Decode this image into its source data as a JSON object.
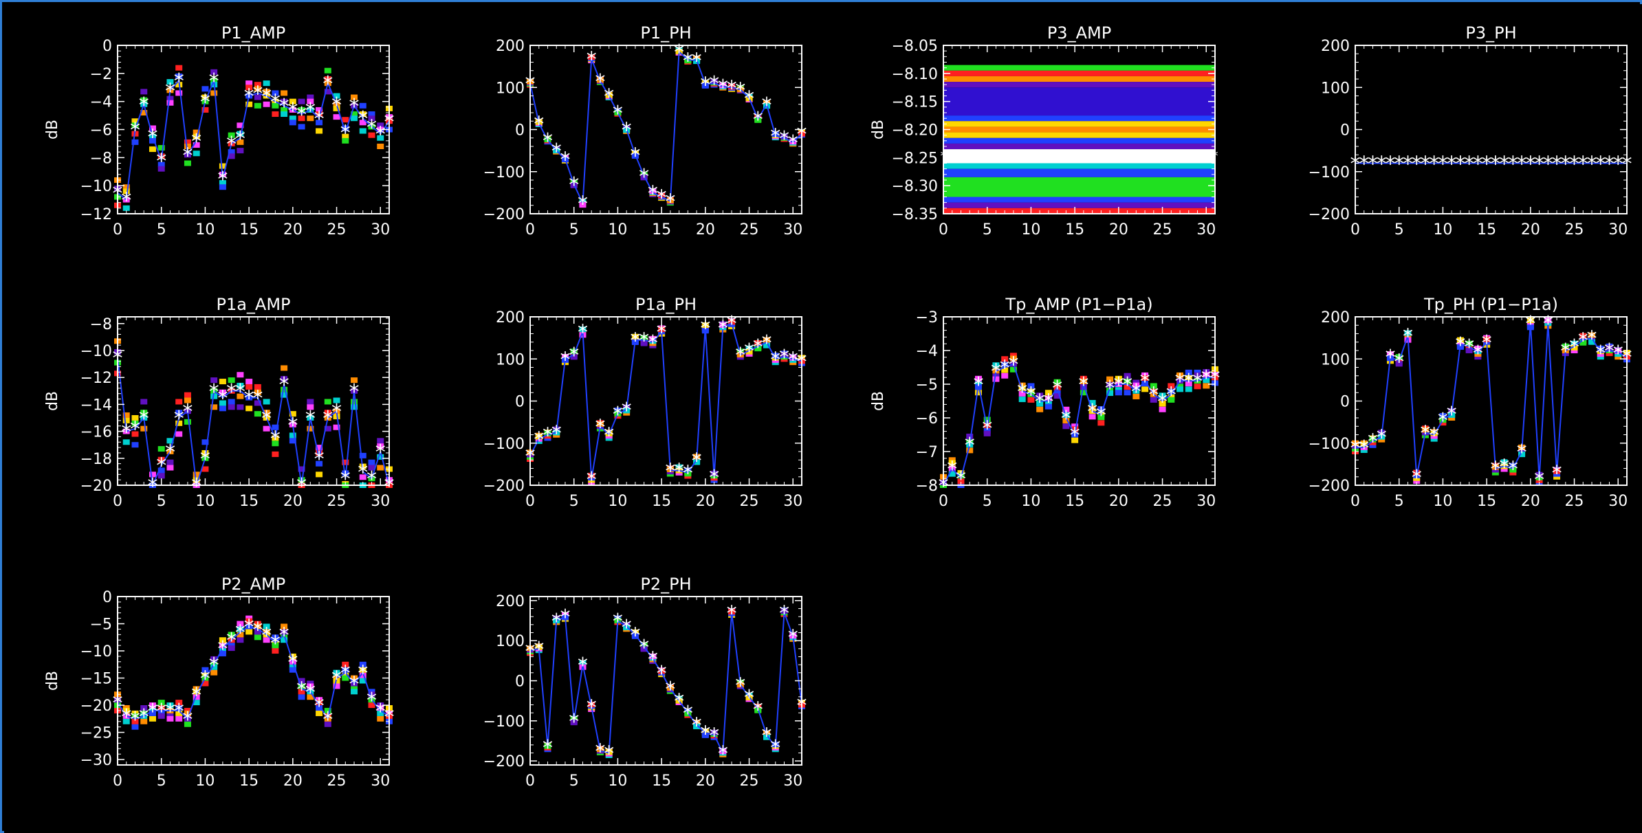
{
  "colors": {
    "background": "#000000",
    "axes": "#ffffff",
    "line": "#2040ff",
    "marker": "#ffffff",
    "frame": "#2f7fd6",
    "palette": [
      "#ff2020",
      "#ff8c00",
      "#ffd700",
      "#20e020",
      "#00d0d0",
      "#2040ff",
      "#6010c0",
      "#ff40ff"
    ]
  },
  "chart_data": [
    {
      "type": "line",
      "title": "P1_AMP",
      "ylabel": "dB",
      "xlim": [
        0,
        31
      ],
      "ylim": [
        -12,
        0
      ],
      "xticks": [
        0,
        5,
        10,
        15,
        20,
        25,
        30
      ],
      "yticks": [
        0,
        -2,
        -4,
        -6,
        -8,
        -10,
        -12
      ],
      "x": [
        0,
        1,
        2,
        3,
        4,
        5,
        6,
        7,
        8,
        9,
        10,
        11,
        12,
        13,
        14,
        15,
        16,
        17,
        18,
        19,
        20,
        21,
        22,
        23,
        24,
        25,
        26,
        27,
        28,
        29,
        30,
        31
      ],
      "values": [
        -10.5,
        -11,
        -6,
        -4.2,
        -6.5,
        -8.2,
        -3.2,
        -2.5,
        -7.8,
        -6.8,
        -4,
        -2.5,
        -9.5,
        -7,
        -6.6,
        -3.6,
        -3.4,
        -3.6,
        -4,
        -4.3,
        -4.6,
        -4.9,
        -4.6,
        -5.2,
        -2.7,
        -4.2,
        -6.2,
        -4.3,
        -5.2,
        -5.8,
        -6.3,
        -5.4
      ],
      "spread": 0.9
    },
    {
      "type": "line",
      "title": "P1_PH",
      "ylabel": "",
      "xlim": [
        0,
        31
      ],
      "ylim": [
        -200,
        200
      ],
      "xticks": [
        0,
        5,
        10,
        15,
        20,
        25,
        30
      ],
      "yticks": [
        200,
        100,
        0,
        -100,
        -200
      ],
      "x": [
        0,
        1,
        2,
        3,
        4,
        5,
        6,
        7,
        8,
        9,
        10,
        11,
        12,
        13,
        14,
        15,
        16,
        17,
        18,
        19,
        20,
        21,
        22,
        23,
        24,
        25,
        26,
        27,
        28,
        29,
        30,
        31
      ],
      "values": [
        110,
        15,
        -25,
        -50,
        -70,
        -130,
        -175,
        168,
        115,
        80,
        40,
        0,
        -60,
        -110,
        -150,
        -160,
        -170,
        185,
        165,
        165,
        108,
        110,
        102,
        100,
        95,
        75,
        25,
        60,
        -15,
        -20,
        -30,
        -10
      ],
      "spread": 4
    },
    {
      "type": "heatmap",
      "title": "P3_AMP",
      "ylabel": "dB",
      "xlim": [
        0,
        31
      ],
      "ylim": [
        -8.35,
        -8.05
      ],
      "xticks": [
        0,
        5,
        10,
        15,
        20,
        25,
        30
      ],
      "yticks": [
        -8.05,
        -8.1,
        -8.15,
        -8.2,
        -8.25,
        -8.3,
        -8.35
      ],
      "ytick_labels": [
        "−8.05",
        "−8.10",
        "−8.15",
        "−8.20",
        "−8.25",
        "−8.30",
        "−8.35"
      ],
      "bands": [
        {
          "y0": -8.085,
          "y1": -8.095,
          "color": "#20e020"
        },
        {
          "y0": -8.095,
          "y1": -8.105,
          "color": "#ff2020"
        },
        {
          "y0": -8.105,
          "y1": -8.115,
          "color": "#ff8c00"
        },
        {
          "y0": -8.115,
          "y1": -8.125,
          "color": "#6010c0"
        },
        {
          "y0": -8.125,
          "y1": -8.175,
          "color": "#3010d0"
        },
        {
          "y0": -8.175,
          "y1": -8.185,
          "color": "#2040ff"
        },
        {
          "y0": -8.185,
          "y1": -8.195,
          "color": "#ffd700"
        },
        {
          "y0": -8.195,
          "y1": -8.205,
          "color": "#ff8c00"
        },
        {
          "y0": -8.205,
          "y1": -8.215,
          "color": "#ffd700"
        },
        {
          "y0": -8.215,
          "y1": -8.225,
          "color": "#2040ff"
        },
        {
          "y0": -8.225,
          "y1": -8.235,
          "color": "#6010c0"
        },
        {
          "y0": -8.235,
          "y1": -8.26,
          "color": "#ffffff"
        },
        {
          "y0": -8.26,
          "y1": -8.27,
          "color": "#00d0d0"
        },
        {
          "y0": -8.27,
          "y1": -8.285,
          "color": "#2040ff"
        },
        {
          "y0": -8.285,
          "y1": -8.32,
          "color": "#20e020"
        },
        {
          "y0": -8.32,
          "y1": -8.33,
          "color": "#2040ff"
        },
        {
          "y0": -8.33,
          "y1": -8.34,
          "color": "#6010c0"
        },
        {
          "y0": -8.34,
          "y1": -8.35,
          "color": "#ff2020"
        }
      ]
    },
    {
      "type": "line",
      "title": "P3_PH",
      "ylabel": "",
      "xlim": [
        0,
        31
      ],
      "ylim": [
        -200,
        200
      ],
      "xticks": [
        0,
        5,
        10,
        15,
        20,
        25,
        30
      ],
      "yticks": [
        200,
        100,
        0,
        -100,
        -200
      ],
      "x": [
        0,
        1,
        2,
        3,
        4,
        5,
        6,
        7,
        8,
        9,
        10,
        11,
        12,
        13,
        14,
        15,
        16,
        17,
        18,
        19,
        20,
        21,
        22,
        23,
        24,
        25,
        26,
        27,
        28,
        29,
        30,
        31
      ],
      "values": [
        -80,
        -80,
        -80,
        -80,
        -80,
        -80,
        -80,
        -80,
        -80,
        -80,
        -80,
        -80,
        -80,
        -80,
        -80,
        -80,
        -80,
        -80,
        -80,
        -80,
        -80,
        -80,
        -80,
        -80,
        -80,
        -80,
        -80,
        -80,
        -80,
        -80,
        -80,
        -80
      ],
      "spread": 0
    },
    {
      "type": "line",
      "title": "P1a_AMP",
      "ylabel": "dB",
      "xlim": [
        0,
        31
      ],
      "ylim": [
        -20,
        -7.5
      ],
      "xticks": [
        0,
        5,
        10,
        15,
        20,
        25,
        30
      ],
      "yticks": [
        -8,
        -10,
        -12,
        -14,
        -16,
        -18,
        -20
      ],
      "x": [
        0,
        1,
        2,
        3,
        4,
        5,
        6,
        7,
        8,
        9,
        10,
        11,
        12,
        13,
        14,
        15,
        16,
        17,
        18,
        19,
        20,
        21,
        22,
        23,
        24,
        25,
        26,
        27,
        28,
        29,
        30,
        31
      ],
      "values": [
        -10.5,
        -16,
        -15.8,
        -15,
        -20,
        -18.5,
        -17.5,
        -15,
        -14.5,
        -20,
        -18,
        -13,
        -13.5,
        -13,
        -13,
        -13.5,
        -13.5,
        -15,
        -16.5,
        -12.5,
        -15.5,
        -20,
        -15,
        -18,
        -15,
        -14.5,
        -19.5,
        -13,
        -19,
        -19.5,
        -17.5,
        -20
      ],
      "spread": 1.2
    },
    {
      "type": "line",
      "title": "P1a_PH",
      "ylabel": "",
      "xlim": [
        0,
        31
      ],
      "ylim": [
        -200,
        200
      ],
      "xticks": [
        0,
        5,
        10,
        15,
        20,
        25,
        30
      ],
      "yticks": [
        200,
        100,
        0,
        -100,
        -200
      ],
      "x": [
        0,
        1,
        2,
        3,
        4,
        5,
        6,
        7,
        8,
        9,
        10,
        11,
        12,
        13,
        14,
        15,
        16,
        17,
        18,
        19,
        20,
        21,
        22,
        23,
        24,
        25,
        26,
        27,
        28,
        29,
        30,
        31
      ],
      "values": [
        -130,
        -90,
        -80,
        -75,
        100,
        110,
        165,
        -185,
        -60,
        -80,
        -30,
        -20,
        145,
        145,
        140,
        165,
        -165,
        -165,
        -170,
        -140,
        175,
        -180,
        175,
        185,
        110,
        120,
        130,
        140,
        100,
        105,
        100,
        95
      ],
      "spread": 8
    },
    {
      "type": "line",
      "title": "Tp_AMP (P1−P1a)",
      "ylabel": "dB",
      "xlim": [
        0,
        31
      ],
      "ylim": [
        -8,
        -3
      ],
      "xticks": [
        0,
        5,
        10,
        15,
        20,
        25,
        30
      ],
      "yticks": [
        -3,
        -4,
        -5,
        -6,
        -7,
        -8
      ],
      "x": [
        0,
        1,
        2,
        3,
        4,
        5,
        6,
        7,
        8,
        9,
        10,
        11,
        12,
        13,
        14,
        15,
        16,
        17,
        18,
        19,
        20,
        21,
        22,
        23,
        24,
        25,
        26,
        27,
        28,
        29,
        30,
        31
      ],
      "values": [
        -8,
        -7.5,
        -7.8,
        -6.8,
        -5,
        -6.3,
        -4.6,
        -4.5,
        -4.4,
        -5.2,
        -5.3,
        -5.5,
        -5.5,
        -5.1,
        -6,
        -6.5,
        -5,
        -5.8,
        -5.9,
        -5.1,
        -5,
        -5,
        -5.2,
        -4.9,
        -5.3,
        -5.5,
        -5.3,
        -4.9,
        -4.9,
        -4.9,
        -4.8,
        -4.8
      ],
      "spread": 0.25
    },
    {
      "type": "line",
      "title": "Tp_PH (P1−P1a)",
      "ylabel": "",
      "xlim": [
        0,
        31
      ],
      "ylim": [
        -200,
        200
      ],
      "xticks": [
        0,
        5,
        10,
        15,
        20,
        25,
        30
      ],
      "yticks": [
        200,
        100,
        0,
        -100,
        -200
      ],
      "x": [
        0,
        1,
        2,
        3,
        4,
        5,
        6,
        7,
        8,
        9,
        10,
        11,
        12,
        13,
        14,
        15,
        16,
        17,
        18,
        19,
        20,
        21,
        22,
        23,
        24,
        25,
        26,
        27,
        28,
        29,
        30,
        31
      ],
      "values": [
        -110,
        -110,
        -95,
        -85,
        105,
        95,
        155,
        -180,
        -75,
        -80,
        -45,
        -30,
        135,
        130,
        115,
        140,
        -160,
        -155,
        -160,
        -120,
        185,
        -185,
        185,
        -170,
        120,
        130,
        145,
        150,
        115,
        120,
        115,
        105
      ],
      "spread": 10
    },
    {
      "type": "line",
      "title": "P2_AMP",
      "ylabel": "dB",
      "xlim": [
        0,
        31
      ],
      "ylim": [
        -31,
        0
      ],
      "xticks": [
        0,
        5,
        10,
        15,
        20,
        25,
        30
      ],
      "yticks": [
        0,
        -5,
        -10,
        -15,
        -20,
        -25,
        -30
      ],
      "x": [
        0,
        1,
        2,
        3,
        4,
        5,
        6,
        7,
        8,
        9,
        10,
        11,
        12,
        13,
        14,
        15,
        16,
        17,
        18,
        19,
        20,
        21,
        22,
        23,
        24,
        25,
        26,
        27,
        28,
        29,
        30,
        31
      ],
      "values": [
        -19.5,
        -22,
        -22.5,
        -22,
        -21,
        -21,
        -21,
        -21,
        -22.5,
        -18,
        -15,
        -12.5,
        -9.5,
        -8,
        -6.5,
        -5.5,
        -6,
        -7,
        -8.5,
        -7,
        -12,
        -17,
        -17.5,
        -20,
        -22.5,
        -15,
        -14,
        -16,
        -14,
        -19,
        -21,
        -22
      ],
      "spread": 1.5
    },
    {
      "type": "line",
      "title": "P2_PH",
      "ylabel": "",
      "xlim": [
        0,
        31
      ],
      "ylim": [
        -210,
        210
      ],
      "xticks": [
        0,
        5,
        10,
        15,
        20,
        25,
        30
      ],
      "yticks": [
        200,
        100,
        0,
        -100,
        -200
      ],
      "x": [
        0,
        1,
        2,
        3,
        4,
        5,
        6,
        7,
        8,
        9,
        10,
        11,
        12,
        13,
        14,
        15,
        16,
        17,
        18,
        19,
        20,
        21,
        22,
        23,
        24,
        25,
        26,
        27,
        28,
        29,
        30,
        31
      ],
      "values": [
        75,
        80,
        -165,
        150,
        160,
        -100,
        40,
        -65,
        -175,
        -180,
        150,
        135,
        115,
        85,
        55,
        20,
        -20,
        -50,
        -80,
        -110,
        -130,
        -135,
        -180,
        170,
        -10,
        -40,
        -70,
        -135,
        -165,
        170,
        110,
        -60
      ],
      "spread": 6
    }
  ]
}
